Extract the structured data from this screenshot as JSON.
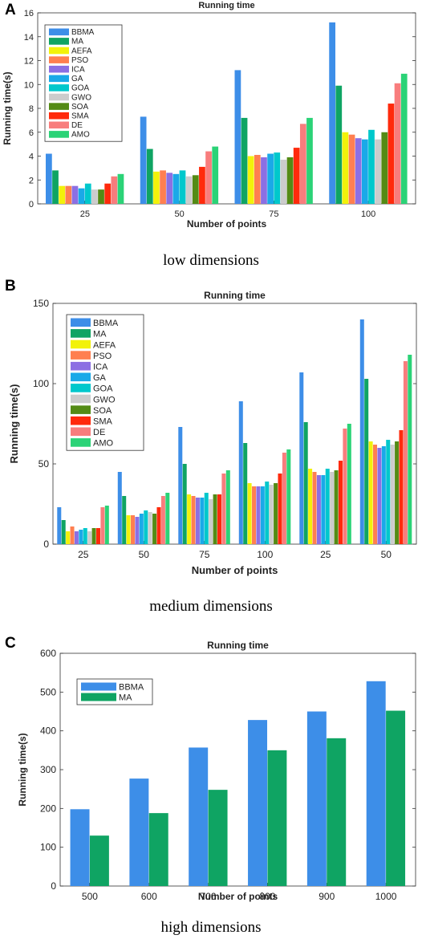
{
  "panels": [
    {
      "letter": "A",
      "caption": "low dimensions",
      "chart_data": {
        "type": "bar",
        "title": "Running time",
        "xlabel": "Number of points",
        "ylabel": "Running time(s)",
        "ylim": [
          0,
          16
        ],
        "yticks": [
          0,
          2,
          4,
          6,
          8,
          10,
          12,
          14,
          16
        ],
        "categories": [
          "25",
          "50",
          "75",
          "100"
        ],
        "legend_position": "top-left",
        "grid": false,
        "series": [
          {
            "name": "BBMA",
            "color": "#3d8ee8",
            "values": [
              4.2,
              7.3,
              11.2,
              15.2
            ]
          },
          {
            "name": "MA",
            "color": "#0fa463",
            "values": [
              2.8,
              4.6,
              7.2,
              9.9
            ]
          },
          {
            "name": "AEFA",
            "color": "#f2f20a",
            "values": [
              1.5,
              2.7,
              4.0,
              6.0
            ]
          },
          {
            "name": "PSO",
            "color": "#ff7f50",
            "values": [
              1.5,
              2.8,
              4.1,
              5.8
            ]
          },
          {
            "name": "ICA",
            "color": "#8c6fe3",
            "values": [
              1.5,
              2.6,
              3.9,
              5.5
            ]
          },
          {
            "name": "GA",
            "color": "#1aa9e8",
            "values": [
              1.3,
              2.5,
              4.2,
              5.4
            ]
          },
          {
            "name": "GOA",
            "color": "#00c8cc",
            "values": [
              1.7,
              2.8,
              4.3,
              6.2
            ]
          },
          {
            "name": "GWO",
            "color": "#cccccc",
            "values": [
              1.2,
              2.3,
              3.7,
              5.4
            ]
          },
          {
            "name": "SOA",
            "color": "#548b15",
            "values": [
              1.2,
              2.4,
              3.9,
              6.0
            ]
          },
          {
            "name": "SMA",
            "color": "#ff2a0c",
            "values": [
              1.7,
              3.1,
              4.7,
              8.4
            ]
          },
          {
            "name": "DE",
            "color": "#f87d7d",
            "values": [
              2.3,
              4.4,
              6.7,
              10.1
            ]
          },
          {
            "name": "AMO",
            "color": "#2bd377",
            "values": [
              2.5,
              4.8,
              7.2,
              10.9
            ]
          }
        ]
      }
    },
    {
      "letter": "B",
      "caption": "medium dimensions",
      "chart_data": {
        "type": "bar",
        "title": "Running time",
        "xlabel": "Number of points",
        "ylabel": "Running time(s)",
        "ylim": [
          0,
          150
        ],
        "yticks": [
          0,
          50,
          100,
          150
        ],
        "categories": [
          "25",
          "50",
          "75",
          "100",
          "25",
          "50"
        ],
        "legend_position": "top-left",
        "grid": false,
        "series": [
          {
            "name": "BBMA",
            "color": "#3d8ee8",
            "values": [
              23,
              45,
              73,
              89,
              107,
              140
            ]
          },
          {
            "name": "MA",
            "color": "#0fa463",
            "values": [
              15,
              30,
              50,
              63,
              76,
              103
            ]
          },
          {
            "name": "AEFA",
            "color": "#f2f20a",
            "values": [
              8,
              18,
              31,
              38,
              47,
              64
            ]
          },
          {
            "name": "PSO",
            "color": "#ff7f50",
            "values": [
              11,
              18,
              30,
              36,
              45,
              62
            ]
          },
          {
            "name": "ICA",
            "color": "#8c6fe3",
            "values": [
              8,
              17,
              29,
              36,
              43,
              60
            ]
          },
          {
            "name": "GA",
            "color": "#1aa9e8",
            "values": [
              9,
              19,
              29,
              36,
              43,
              61
            ]
          },
          {
            "name": "GOA",
            "color": "#00c8cc",
            "values": [
              10,
              21,
              32,
              39,
              47,
              65
            ]
          },
          {
            "name": "GWO",
            "color": "#cccccc",
            "values": [
              8,
              20,
              28,
              37,
              45,
              62
            ]
          },
          {
            "name": "SOA",
            "color": "#548b15",
            "values": [
              10,
              19,
              31,
              38,
              46,
              64
            ]
          },
          {
            "name": "SMA",
            "color": "#ff2a0c",
            "values": [
              10,
              23,
              31,
              44,
              52,
              71
            ]
          },
          {
            "name": "DE",
            "color": "#f87d7d",
            "values": [
              23,
              30,
              44,
              57,
              72,
              114
            ]
          },
          {
            "name": "AMO",
            "color": "#2bd377",
            "values": [
              24,
              32,
              46,
              59,
              75,
              118
            ]
          }
        ]
      }
    },
    {
      "letter": "C",
      "caption": "high dimensions",
      "chart_data": {
        "type": "bar",
        "title": "Running time",
        "xlabel": "Number of points",
        "ylabel": "Running time(s)",
        "ylim": [
          0,
          600
        ],
        "yticks": [
          0,
          100,
          200,
          300,
          400,
          500,
          600
        ],
        "categories": [
          "500",
          "600",
          "700",
          "800",
          "900",
          "1000"
        ],
        "legend_position": "top-left",
        "grid": false,
        "series": [
          {
            "name": "BBMA",
            "color": "#3d8ee8",
            "values": [
              198,
              277,
              357,
              428,
              450,
              528
            ]
          },
          {
            "name": "MA",
            "color": "#0fa463",
            "values": [
              130,
              188,
              248,
              350,
              381,
              452
            ]
          }
        ]
      }
    }
  ]
}
